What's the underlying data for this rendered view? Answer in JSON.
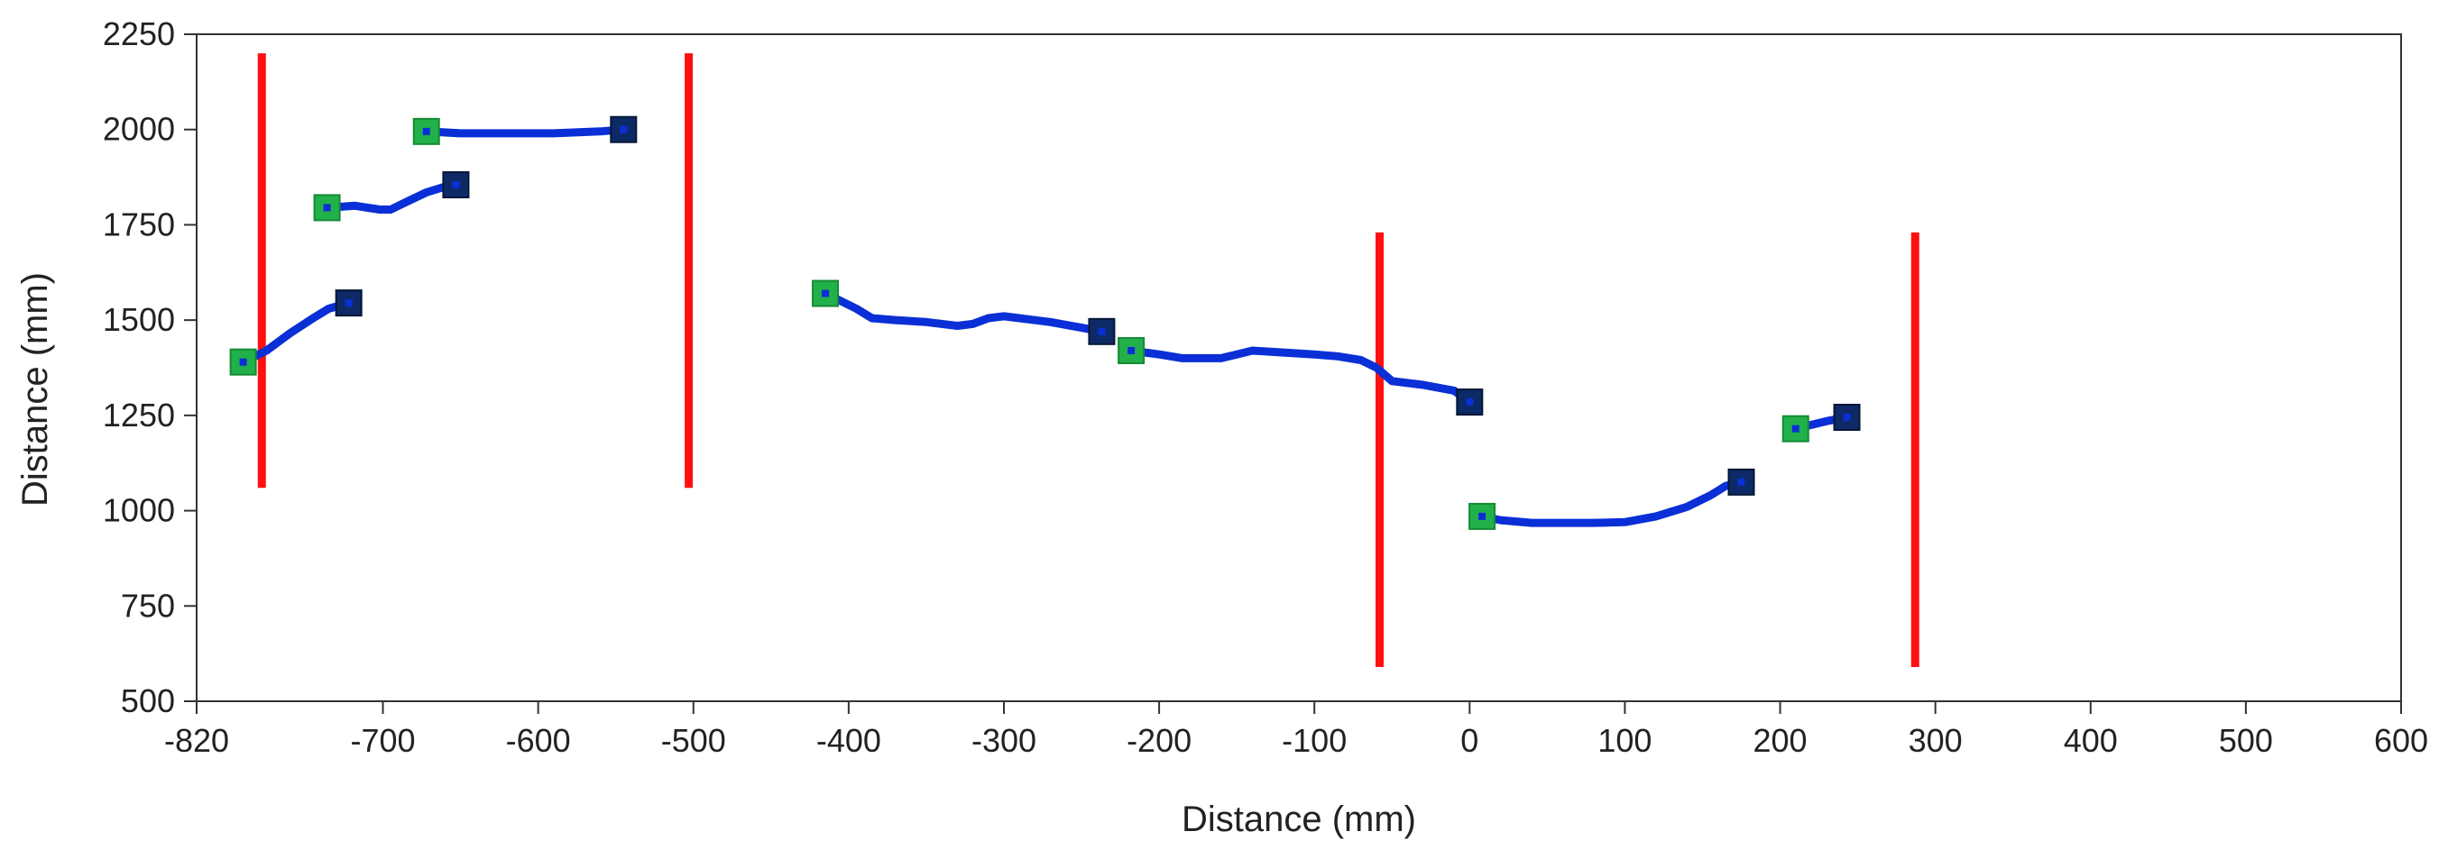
{
  "chart_data": {
    "type": "line",
    "title": "",
    "xlabel": "Distance (mm)",
    "ylabel": "Distance (mm)",
    "xlim": [
      -820,
      600
    ],
    "ylim": [
      500,
      2250
    ],
    "x_ticks": [
      -820,
      -700,
      -600,
      -500,
      -400,
      -300,
      -200,
      -100,
      0,
      100,
      200,
      300,
      400,
      500,
      600
    ],
    "y_ticks": [
      500,
      750,
      1000,
      1250,
      1500,
      1750,
      2000,
      2250
    ],
    "grid": false,
    "legend": "none",
    "colors": {
      "series_line": "#0a2fd6",
      "start_marker": "#22b04a",
      "end_marker": "#0d2a66",
      "vertical_lines": "#ff1010",
      "axis": "#333333"
    },
    "series": [
      {
        "x": [
          -790,
          -775,
          -760,
          -745,
          -735,
          -722
        ],
        "y": [
          1390,
          1420,
          1465,
          1505,
          1530,
          1545
        ]
      },
      {
        "x": [
          -736,
          -718,
          -702,
          -695,
          -685,
          -672,
          -660,
          -653
        ],
        "y": [
          1795,
          1800,
          1790,
          1790,
          1810,
          1835,
          1850,
          1855
        ]
      },
      {
        "x": [
          -672,
          -650,
          -620,
          -590,
          -560,
          -545
        ],
        "y": [
          1995,
          1990,
          1990,
          1990,
          1995,
          2000
        ]
      },
      {
        "x": [
          -415,
          -395,
          -385,
          -370,
          -350,
          -330,
          -320,
          -310,
          -300,
          -290,
          -270,
          -250,
          -237
        ],
        "y": [
          1570,
          1530,
          1505,
          1500,
          1495,
          1485,
          1490,
          1505,
          1510,
          1505,
          1495,
          1480,
          1470
        ]
      },
      {
        "x": [
          -218,
          -200,
          -185,
          -160,
          -150,
          -140,
          -120,
          -100,
          -85,
          -70,
          -60,
          -50,
          -30,
          -10,
          0
        ],
        "y": [
          1420,
          1410,
          1400,
          1400,
          1410,
          1420,
          1415,
          1410,
          1405,
          1395,
          1375,
          1340,
          1330,
          1315,
          1285
        ]
      },
      {
        "x": [
          8,
          20,
          40,
          60,
          80,
          100,
          120,
          140,
          155,
          165,
          175
        ],
        "y": [
          985,
          975,
          968,
          968,
          968,
          970,
          985,
          1010,
          1040,
          1065,
          1075
        ]
      },
      {
        "x": [
          210,
          220,
          230,
          243
        ],
        "y": [
          1215,
          1225,
          1235,
          1245
        ]
      }
    ],
    "vertical_lines": [
      {
        "x": -778,
        "y_range": [
          1060,
          2200
        ]
      },
      {
        "x": -503,
        "y_range": [
          1060,
          2200
        ]
      },
      {
        "x": -58,
        "y_range": [
          590,
          1730
        ]
      },
      {
        "x": 287,
        "y_range": [
          590,
          1730
        ]
      }
    ]
  }
}
